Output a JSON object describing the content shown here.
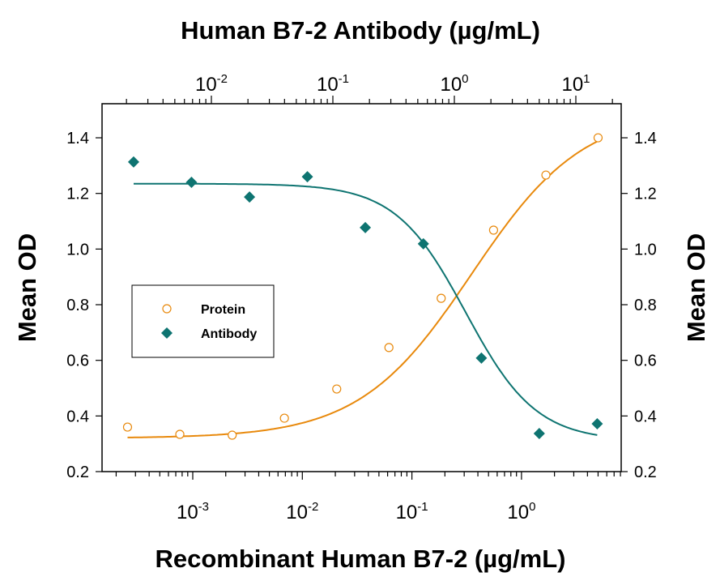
{
  "chart_data": {
    "type": "scatter",
    "title": "Human B7-2 Antibody (µg/mL)",
    "xlabel": "Recombinant Human B7-2 (µg/mL)",
    "ylabel": "Mean OD",
    "ylabel_right": "Mean OD",
    "x_bottom": {
      "scale": "log",
      "range": [
        0.000155,
        5.5
      ],
      "tick_labels": [
        {
          "base": "10",
          "exp": "-3",
          "value": 0.001
        },
        {
          "base": "10",
          "exp": "-2",
          "value": 0.01
        },
        {
          "base": "10",
          "exp": "-1",
          "value": 0.1
        },
        {
          "base": "10",
          "exp": "0",
          "value": 1
        }
      ]
    },
    "x_top": {
      "scale": "log",
      "range": [
        0.00196,
        25
      ],
      "tick_labels": [
        {
          "base": "10",
          "exp": "-2",
          "value": 0.01
        },
        {
          "base": "10",
          "exp": "-1",
          "value": 0.1
        },
        {
          "base": "10",
          "exp": "0",
          "value": 1
        },
        {
          "base": "10",
          "exp": "1",
          "value": 10
        }
      ]
    },
    "ylim": [
      0.2,
      1.52
    ],
    "y_ticks": [
      "0.2",
      "0.4",
      "0.6",
      "0.8",
      "1.0",
      "1.2",
      "1.4"
    ],
    "grid": false,
    "legend_position": "center-left",
    "series": [
      {
        "name": "Protein",
        "axis": "bottom",
        "marker": "open-circle",
        "color": "#E8890C",
        "x": [
          0.000254,
          0.000762,
          0.00229,
          0.00686,
          0.0206,
          0.0617,
          0.185,
          0.556,
          1.67,
          5.0
        ],
        "y": [
          0.36,
          0.334,
          0.331,
          0.392,
          0.497,
          0.646,
          0.823,
          1.068,
          1.266,
          1.4
        ],
        "fit": {
          "bottom": 0.32,
          "top": 1.5,
          "ec50": 0.35,
          "hill": 0.85
        }
      },
      {
        "name": "Antibody",
        "axis": "top",
        "marker": "filled-diamond",
        "color": "#0E7471",
        "x": [
          0.00229,
          0.00686,
          0.0206,
          0.0617,
          0.185,
          0.556,
          1.67,
          5.0,
          15.0
        ],
        "y": [
          1.313,
          1.24,
          1.187,
          1.26,
          1.077,
          1.019,
          0.608,
          0.337,
          0.372
        ],
        "fit": {
          "bottom": 1.235,
          "top": 0.31,
          "ec50": 1.24,
          "hill": 1.5
        }
      }
    ]
  }
}
